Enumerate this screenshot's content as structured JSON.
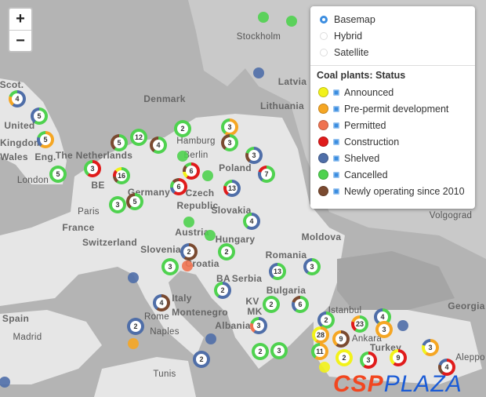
{
  "zoom_controls": {
    "zoom_in": "+",
    "zoom_out": "−"
  },
  "layers": {
    "options": [
      {
        "label": "Basemap",
        "selected": true
      },
      {
        "label": "Hybrid",
        "selected": false
      },
      {
        "label": "Satellite",
        "selected": false
      }
    ]
  },
  "legend": {
    "title": "Coal plants: Status",
    "items": [
      {
        "label": "Announced",
        "color": "#f2f21a",
        "checked": true
      },
      {
        "label": "Pre-permit development",
        "color": "#f5a623",
        "checked": true
      },
      {
        "label": "Permitted",
        "color": "#ef7250",
        "checked": true
      },
      {
        "label": "Construction",
        "color": "#e01b1b",
        "checked": true
      },
      {
        "label": "Shelved",
        "color": "#4f6ea8",
        "checked": true
      },
      {
        "label": "Cancelled",
        "color": "#4fd24f",
        "checked": true
      },
      {
        "label": "Newly operating since 2010",
        "color": "#7a4a30",
        "checked": true
      }
    ]
  },
  "map_labels": [
    "Stockholm",
    "Latvia",
    "Denmark",
    "Lithuania",
    "United",
    "Kingdom",
    "Wales",
    "Eng.",
    "London",
    "The Netherlands",
    "BE",
    "Germany",
    "Hamburg",
    "Berlin",
    "Poland",
    "Czech",
    "Republic",
    "Paris",
    "France",
    "Switzerland",
    "Austria",
    "Slovakia",
    "Hungary",
    "Moldova",
    "Romania",
    "Slovenia",
    "Croatia",
    "BA",
    "Serbia",
    "KV",
    "Bulgaria",
    "MK",
    "Montenegro",
    "Albania",
    "Italy",
    "Rome",
    "Naples",
    "Spain",
    "Madrid",
    "Tunis",
    "Turkey",
    "Ankara",
    "Istanbul",
    "Georgia",
    "Volgograd",
    "Aleppo",
    "Scot."
  ],
  "clusters": [
    {
      "count": "4",
      "statuses": [
        "Shelved",
        "Pre-permit development",
        "Cancelled"
      ]
    },
    {
      "count": "5",
      "statuses": [
        "Cancelled",
        "Shelved"
      ]
    },
    {
      "count": "5",
      "statuses": [
        "Pre-permit development",
        "Shelved",
        "Cancelled"
      ]
    },
    {
      "count": "5",
      "statuses": [
        "Cancelled"
      ]
    },
    {
      "count": "3",
      "statuses": [
        "Construction",
        "Cancelled"
      ]
    },
    {
      "count": "5",
      "statuses": [
        "Cancelled",
        "Newly operating since 2010"
      ]
    },
    {
      "count": "12",
      "statuses": [
        "Cancelled"
      ]
    },
    {
      "count": "4",
      "statuses": [
        "Cancelled",
        "Newly operating since 2010"
      ]
    },
    {
      "count": "2",
      "statuses": [
        "Cancelled"
      ]
    },
    {
      "count": "3",
      "statuses": [
        "Pre-permit development",
        "Cancelled"
      ]
    },
    {
      "count": "3",
      "statuses": [
        "Cancelled",
        "Newly operating since 2010"
      ]
    },
    {
      "count": "3",
      "statuses": [
        "Shelved",
        "Newly operating since 2010",
        "Cancelled"
      ]
    },
    {
      "count": "7",
      "statuses": [
        "Cancelled",
        "Shelved",
        "Construction"
      ]
    },
    {
      "count": "16",
      "statuses": [
        "Cancelled",
        "Newly operating since 2010",
        "Construction",
        "Announced"
      ]
    },
    {
      "count": "3",
      "statuses": [
        "Cancelled"
      ]
    },
    {
      "count": "5",
      "statuses": [
        "Cancelled",
        "Newly operating since 2010"
      ]
    },
    {
      "count": "6",
      "statuses": [
        "Construction",
        "Announced",
        "Newly operating since 2010",
        "Cancelled"
      ]
    },
    {
      "count": "6",
      "statuses": [
        "Construction",
        "Shelved",
        "Cancelled",
        "Newly operating since 2010"
      ]
    },
    {
      "count": "13",
      "statuses": [
        "Shelved",
        "Construction",
        "Cancelled"
      ]
    },
    {
      "count": "4",
      "statuses": [
        "Shelved",
        "Cancelled"
      ]
    },
    {
      "count": "2",
      "statuses": [
        "Newly operating since 2010",
        "Shelved"
      ]
    },
    {
      "count": "2",
      "statuses": [
        "Cancelled"
      ]
    },
    {
      "count": "3",
      "statuses": [
        "Cancelled"
      ]
    },
    {
      "count": "13",
      "statuses": [
        "Cancelled",
        "Shelved"
      ]
    },
    {
      "count": "3",
      "statuses": [
        "Cancelled",
        "Shelved"
      ]
    },
    {
      "count": "2",
      "statuses": [
        "Shelved",
        "Cancelled"
      ]
    },
    {
      "count": "2",
      "statuses": [
        "Cancelled"
      ]
    },
    {
      "count": "6",
      "statuses": [
        "Cancelled",
        "Shelved",
        "Newly operating since 2010"
      ]
    },
    {
      "count": "3",
      "statuses": [
        "Shelved",
        "Permitted",
        "Cancelled"
      ]
    },
    {
      "count": "4",
      "statuses": [
        "Newly operating since 2010",
        "Shelved"
      ]
    },
    {
      "count": "2",
      "statuses": [
        "Shelved"
      ]
    },
    {
      "count": "2",
      "statuses": [
        "Shelved"
      ]
    },
    {
      "count": "2",
      "statuses": [
        "Cancelled"
      ]
    },
    {
      "count": "3",
      "statuses": [
        "Cancelled"
      ]
    },
    {
      "count": "2",
      "statuses": [
        "Cancelled",
        "Shelved"
      ]
    },
    {
      "count": "28",
      "statuses": [
        "Pre-permit development",
        "Announced"
      ]
    },
    {
      "count": "9",
      "statuses": [
        "Newly operating since 2010",
        "Pre-permit development"
      ]
    },
    {
      "count": "23",
      "statuses": [
        "Cancelled",
        "Construction",
        "Pre-permit development"
      ]
    },
    {
      "count": "4",
      "statuses": [
        "Cancelled",
        "Shelved"
      ]
    },
    {
      "count": "3",
      "statuses": [
        "Pre-permit development"
      ]
    },
    {
      "count": "11",
      "statuses": [
        "Pre-permit development",
        "Cancelled"
      ]
    },
    {
      "count": "2",
      "statuses": [
        "Announced"
      ]
    },
    {
      "count": "3",
      "statuses": [
        "Construction",
        "Cancelled"
      ]
    },
    {
      "count": "9",
      "statuses": [
        "Construction",
        "Announced"
      ]
    },
    {
      "count": "3",
      "statuses": [
        "Pre-permit development",
        "Announced",
        "Shelved"
      ]
    },
    {
      "count": "4",
      "statuses": [
        "Construction",
        "Newly operating since 2010",
        "Shelved"
      ]
    }
  ],
  "single_plants": [
    "Cancelled",
    "Cancelled",
    "Shelved",
    "Cancelled",
    "Cancelled",
    "Cancelled",
    "Cancelled",
    "Permitted",
    "Shelved",
    "Shelved",
    "Pre-permit development",
    "Announced",
    "Shelved",
    "Shelved"
  ],
  "watermark": {
    "part1": "CSP",
    "part2": "PLAZA"
  }
}
